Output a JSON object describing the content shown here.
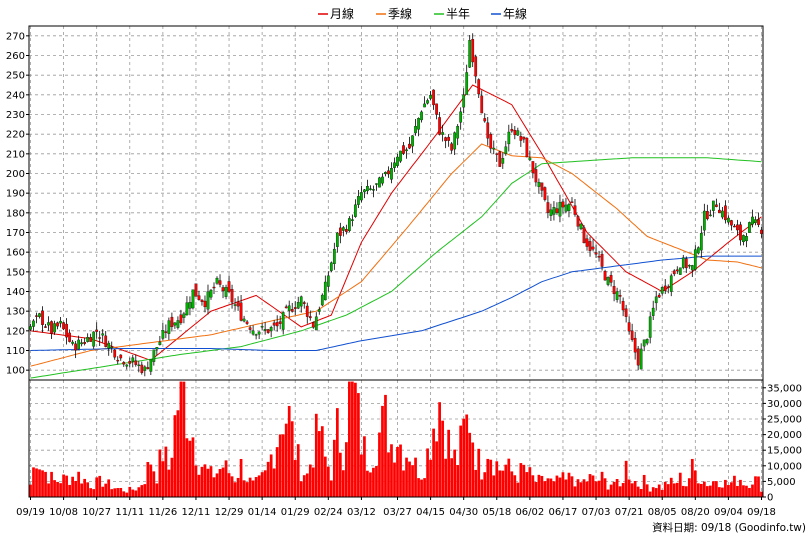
{
  "legend": [
    {
      "name": "月線",
      "color": "#e00000"
    },
    {
      "name": "季線",
      "color": "#f07010"
    },
    {
      "name": "半年",
      "color": "#20c020"
    },
    {
      "name": "年線",
      "color": "#1050d0"
    }
  ],
  "source_text": "資料日期: 09/18  (Goodinfo.tw)",
  "chart_data": {
    "type": "candlestick",
    "x_ticks": [
      "09/19",
      "10/08",
      "10/27",
      "11/11",
      "11/26",
      "12/11",
      "12/29",
      "01/14",
      "01/29",
      "02/24",
      "03/12",
      "03/27",
      "04/15",
      "04/30",
      "05/18",
      "06/02",
      "06/17",
      "07/03",
      "07/21",
      "08/05",
      "08/20",
      "09/04",
      "09/18"
    ],
    "price_ylim": [
      95,
      275
    ],
    "price_ticks": [
      100,
      110,
      120,
      130,
      140,
      150,
      160,
      170,
      180,
      190,
      200,
      210,
      220,
      230,
      240,
      250,
      260,
      270
    ],
    "volume_ylim": [
      0,
      37500
    ],
    "volume_ticks": [
      "0",
      "5,000",
      "10,000",
      "15,000",
      "20,000",
      "25,000",
      "30,000",
      "35,000"
    ],
    "close_keypoints": [
      [
        0,
        122
      ],
      [
        3,
        127
      ],
      [
        7,
        120
      ],
      [
        10,
        123
      ],
      [
        14,
        112
      ],
      [
        18,
        115
      ],
      [
        22,
        120
      ],
      [
        26,
        113
      ],
      [
        30,
        106
      ],
      [
        34,
        104
      ],
      [
        38,
        100
      ],
      [
        42,
        112
      ],
      [
        46,
        123
      ],
      [
        50,
        127
      ],
      [
        54,
        140
      ],
      [
        58,
        135
      ],
      [
        62,
        144
      ],
      [
        66,
        138
      ],
      [
        70,
        128
      ],
      [
        74,
        121
      ],
      [
        78,
        120
      ],
      [
        82,
        122
      ],
      [
        86,
        131
      ],
      [
        90,
        136
      ],
      [
        94,
        123
      ],
      [
        98,
        142
      ],
      [
        102,
        168
      ],
      [
        106,
        175
      ],
      [
        110,
        190
      ],
      [
        114,
        192
      ],
      [
        118,
        198
      ],
      [
        122,
        210
      ],
      [
        126,
        213
      ],
      [
        130,
        233
      ],
      [
        133,
        240
      ],
      [
        136,
        222
      ],
      [
        140,
        212
      ],
      [
        144,
        238
      ],
      [
        146,
        268
      ],
      [
        149,
        243
      ],
      [
        152,
        215
      ],
      [
        156,
        205
      ],
      [
        160,
        224
      ],
      [
        164,
        215
      ],
      [
        168,
        197
      ],
      [
        172,
        180
      ],
      [
        176,
        183
      ],
      [
        180,
        185
      ],
      [
        184,
        167
      ],
      [
        188,
        158
      ],
      [
        192,
        145
      ],
      [
        196,
        137
      ],
      [
        199,
        118
      ],
      [
        202,
        105
      ],
      [
        205,
        118
      ],
      [
        208,
        137
      ],
      [
        212,
        145
      ],
      [
        216,
        155
      ],
      [
        220,
        152
      ],
      [
        224,
        178
      ],
      [
        228,
        185
      ],
      [
        232,
        176
      ],
      [
        236,
        167
      ],
      [
        240,
        175
      ],
      [
        243,
        172
      ]
    ],
    "ma": {
      "月線": [
        [
          0,
          120
        ],
        [
          20,
          116
        ],
        [
          40,
          105
        ],
        [
          60,
          130
        ],
        [
          75,
          138
        ],
        [
          90,
          122
        ],
        [
          100,
          128
        ],
        [
          110,
          165
        ],
        [
          120,
          190
        ],
        [
          135,
          220
        ],
        [
          147,
          245
        ],
        [
          160,
          235
        ],
        [
          172,
          205
        ],
        [
          185,
          170
        ],
        [
          198,
          150
        ],
        [
          210,
          140
        ],
        [
          220,
          150
        ],
        [
          232,
          165
        ],
        [
          243,
          178
        ]
      ],
      "季線": [
        [
          0,
          102
        ],
        [
          20,
          110
        ],
        [
          40,
          114
        ],
        [
          60,
          118
        ],
        [
          80,
          125
        ],
        [
          95,
          130
        ],
        [
          110,
          145
        ],
        [
          125,
          172
        ],
        [
          140,
          200
        ],
        [
          150,
          215
        ],
        [
          160,
          209
        ],
        [
          170,
          208
        ],
        [
          180,
          200
        ],
        [
          195,
          182
        ],
        [
          205,
          168
        ],
        [
          215,
          162
        ],
        [
          225,
          156
        ],
        [
          235,
          155
        ],
        [
          243,
          152
        ]
      ],
      "半年": [
        [
          0,
          96
        ],
        [
          25,
          102
        ],
        [
          50,
          108
        ],
        [
          70,
          112
        ],
        [
          90,
          120
        ],
        [
          105,
          128
        ],
        [
          120,
          140
        ],
        [
          135,
          160
        ],
        [
          150,
          178
        ],
        [
          160,
          195
        ],
        [
          170,
          205
        ],
        [
          180,
          206
        ],
        [
          200,
          208
        ],
        [
          225,
          208
        ],
        [
          243,
          206
        ]
      ],
      "年線": [
        [
          0,
          110
        ],
        [
          30,
          111
        ],
        [
          60,
          111
        ],
        [
          80,
          110
        ],
        [
          95,
          110
        ],
        [
          110,
          115
        ],
        [
          130,
          120
        ],
        [
          150,
          130
        ],
        [
          160,
          137
        ],
        [
          170,
          145
        ],
        [
          180,
          150
        ],
        [
          195,
          153
        ],
        [
          210,
          156
        ],
        [
          225,
          158
        ],
        [
          243,
          158
        ]
      ]
    },
    "volume_keypoints": [
      [
        0,
        4000
      ],
      [
        2,
        14000
      ],
      [
        4,
        9000
      ],
      [
        8,
        5000
      ],
      [
        12,
        6000
      ],
      [
        16,
        7000
      ],
      [
        20,
        4000
      ],
      [
        24,
        5000
      ],
      [
        28,
        3000
      ],
      [
        32,
        2000
      ],
      [
        36,
        3000
      ],
      [
        38,
        6000
      ],
      [
        40,
        12000
      ],
      [
        42,
        7000
      ],
      [
        44,
        15000
      ],
      [
        46,
        9000
      ],
      [
        48,
        24000
      ],
      [
        50,
        37000
      ],
      [
        52,
        28000
      ],
      [
        54,
        20000
      ],
      [
        56,
        12000
      ],
      [
        58,
        9000
      ],
      [
        60,
        7000
      ],
      [
        62,
        8000
      ],
      [
        64,
        10000
      ],
      [
        66,
        8000
      ],
      [
        68,
        6000
      ],
      [
        70,
        10000
      ],
      [
        72,
        6000
      ],
      [
        74,
        4000
      ],
      [
        76,
        5000
      ],
      [
        78,
        7000
      ],
      [
        80,
        13000
      ],
      [
        82,
        19000
      ],
      [
        84,
        27000
      ],
      [
        86,
        25000
      ],
      [
        88,
        15000
      ],
      [
        90,
        9000
      ],
      [
        92,
        7000
      ],
      [
        94,
        15000
      ],
      [
        96,
        22000
      ],
      [
        98,
        12000
      ],
      [
        100,
        8000
      ],
      [
        102,
        21000
      ],
      [
        104,
        15000
      ],
      [
        106,
        36000
      ],
      [
        108,
        32000
      ],
      [
        110,
        18000
      ],
      [
        112,
        12000
      ],
      [
        114,
        15000
      ],
      [
        116,
        20000
      ],
      [
        118,
        25000
      ],
      [
        120,
        17000
      ],
      [
        122,
        20000
      ],
      [
        124,
        14000
      ],
      [
        126,
        15000
      ],
      [
        128,
        10000
      ],
      [
        130,
        8000
      ],
      [
        132,
        14000
      ],
      [
        134,
        24000
      ],
      [
        136,
        31000
      ],
      [
        138,
        22000
      ],
      [
        140,
        13000
      ],
      [
        142,
        12000
      ],
      [
        144,
        21000
      ],
      [
        146,
        26000
      ],
      [
        148,
        14000
      ],
      [
        150,
        9000
      ],
      [
        152,
        17000
      ],
      [
        154,
        12000
      ],
      [
        156,
        9000
      ],
      [
        158,
        10000
      ],
      [
        160,
        8000
      ],
      [
        162,
        7000
      ],
      [
        164,
        9000
      ],
      [
        166,
        7000
      ],
      [
        168,
        5000
      ],
      [
        170,
        5000
      ],
      [
        172,
        6000
      ],
      [
        174,
        4000
      ],
      [
        176,
        6000
      ],
      [
        178,
        5000
      ],
      [
        180,
        7000
      ],
      [
        182,
        4000
      ],
      [
        184,
        5000
      ],
      [
        186,
        6000
      ],
      [
        188,
        5000
      ],
      [
        190,
        6000
      ],
      [
        192,
        4000
      ],
      [
        194,
        5000
      ],
      [
        196,
        3000
      ],
      [
        198,
        10000
      ],
      [
        200,
        6000
      ],
      [
        202,
        4000
      ],
      [
        204,
        5000
      ],
      [
        206,
        3000
      ],
      [
        208,
        4000
      ],
      [
        210,
        3000
      ],
      [
        212,
        5000
      ],
      [
        214,
        4000
      ],
      [
        216,
        6000
      ],
      [
        218,
        4000
      ],
      [
        220,
        9000
      ],
      [
        222,
        7000
      ],
      [
        224,
        5000
      ],
      [
        226,
        4000
      ],
      [
        228,
        6000
      ],
      [
        230,
        5000
      ],
      [
        232,
        4000
      ],
      [
        234,
        5000
      ],
      [
        236,
        6000
      ],
      [
        238,
        4000
      ],
      [
        240,
        6000
      ],
      [
        242,
        5000
      ],
      [
        243,
        3000
      ]
    ]
  },
  "colors": {
    "up": "#00b000",
    "down": "#ff0000",
    "wick": "#000000",
    "volume": "#ff0000",
    "grid": "#9a9a9a"
  }
}
